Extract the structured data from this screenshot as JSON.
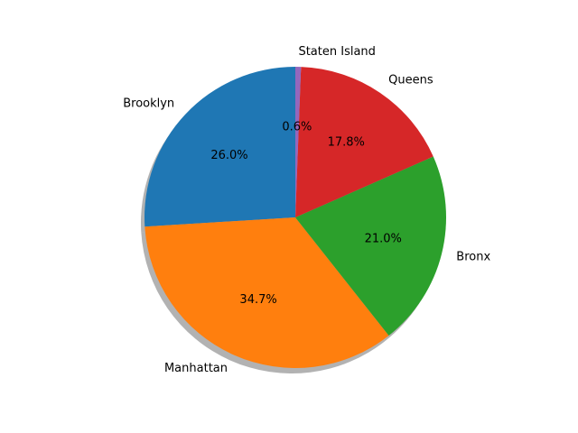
{
  "chart_data": {
    "type": "pie",
    "title": "",
    "slices": [
      {
        "label": "Brooklyn",
        "value": 26.0,
        "pct_label": "26.0%",
        "color": "#1f77b4"
      },
      {
        "label": "Manhattan",
        "value": 34.7,
        "pct_label": "34.7%",
        "color": "#ff7f0e"
      },
      {
        "label": "Bronx",
        "value": 21.0,
        "pct_label": "21.0%",
        "color": "#2ca02c"
      },
      {
        "label": "Queens",
        "value": 17.8,
        "pct_label": "17.8%",
        "color": "#d62728"
      },
      {
        "label": "Staten Island",
        "value": 0.6,
        "pct_label": "0.6%",
        "color": "#9467bd"
      }
    ],
    "start_angle_deg": 90,
    "direction": "counterclockwise",
    "shadow": true,
    "legend": "none"
  }
}
